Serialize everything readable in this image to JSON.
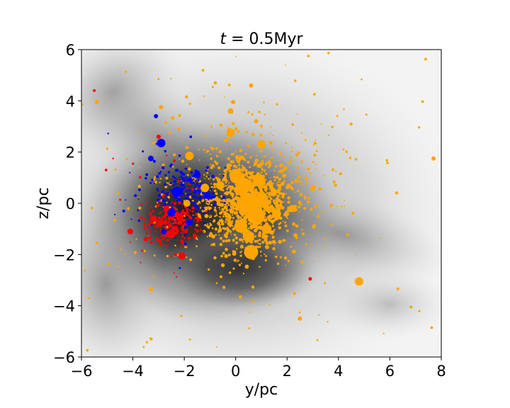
{
  "chart_data": {
    "type": "scatter",
    "title_italic": "t",
    "title_rest": " = 0.5Myr",
    "xlabel": "y/pc",
    "ylabel": "z/pc",
    "xlim": [
      -6,
      8
    ],
    "ylim": [
      -6,
      6
    ],
    "xticks": [
      "−6",
      "−4",
      "−2",
      "0",
      "2",
      "4",
      "6",
      "8"
    ],
    "yticks": [
      "−6",
      "−4",
      "−2",
      "0",
      "2",
      "4",
      "6"
    ],
    "background": "grayscale gas density map",
    "series": [
      {
        "color": "#ffa500",
        "points": [
          [
            0.6,
            -1.9
          ],
          [
            4.8,
            -3.05
          ],
          [
            0.5,
            0.0
          ],
          [
            0.3,
            0.7
          ],
          [
            0.0,
            1.1
          ],
          [
            0.8,
            -0.5
          ],
          [
            1.0,
            0.1
          ],
          [
            0.2,
            -0.9
          ],
          [
            -0.2,
            2.75
          ],
          [
            1.0,
            2.3
          ],
          [
            -1.8,
            1.85
          ],
          [
            -2.9,
            3.75
          ],
          [
            -1.9,
            0.0
          ],
          [
            -5.4,
            3.95
          ],
          [
            7.7,
            1.75
          ],
          [
            -3.3,
            -3.35
          ],
          [
            2.5,
            -4.5
          ],
          [
            -0.1,
            3.95
          ],
          [
            0.6,
            4.6
          ],
          [
            0.0,
            1.0
          ],
          [
            0.9,
            0.9
          ],
          [
            0.5,
            -1.3
          ],
          [
            1.2,
            -1.0
          ],
          [
            -0.6,
            0.7
          ],
          [
            2.2,
            -0.2
          ],
          [
            3.0,
            0.6
          ],
          [
            -0.2,
            3.6
          ],
          [
            0.8,
            3.2
          ],
          [
            -1.2,
            0.6
          ],
          [
            1.6,
            -0.4
          ]
        ]
      },
      {
        "color": "#0000ff",
        "points": [
          [
            -2.9,
            2.35
          ],
          [
            -2.3,
            0.45
          ],
          [
            -1.1,
            0.3
          ],
          [
            -3.3,
            1.75
          ],
          [
            -1.5,
            1.1
          ],
          [
            -2.8,
            -1.1
          ],
          [
            -2.5,
            -0.35
          ],
          [
            -1.8,
            -0.75
          ],
          [
            -3.1,
            3.4
          ],
          [
            -3.9,
            0.3
          ]
        ]
      },
      {
        "color": "#ff0000",
        "points": [
          [
            -4.1,
            -1.1
          ],
          [
            -2.1,
            -2.05
          ],
          [
            -2.5,
            -1.2
          ],
          [
            -3.2,
            -0.6
          ],
          [
            -3.0,
            2.6
          ],
          [
            -2.2,
            -0.5
          ],
          [
            -2.7,
            -0.2
          ],
          [
            -3.5,
            -1.4
          ],
          [
            2.9,
            -2.95
          ],
          [
            -1.6,
            -1.25
          ],
          [
            -5.5,
            4.4
          ]
        ]
      }
    ]
  }
}
